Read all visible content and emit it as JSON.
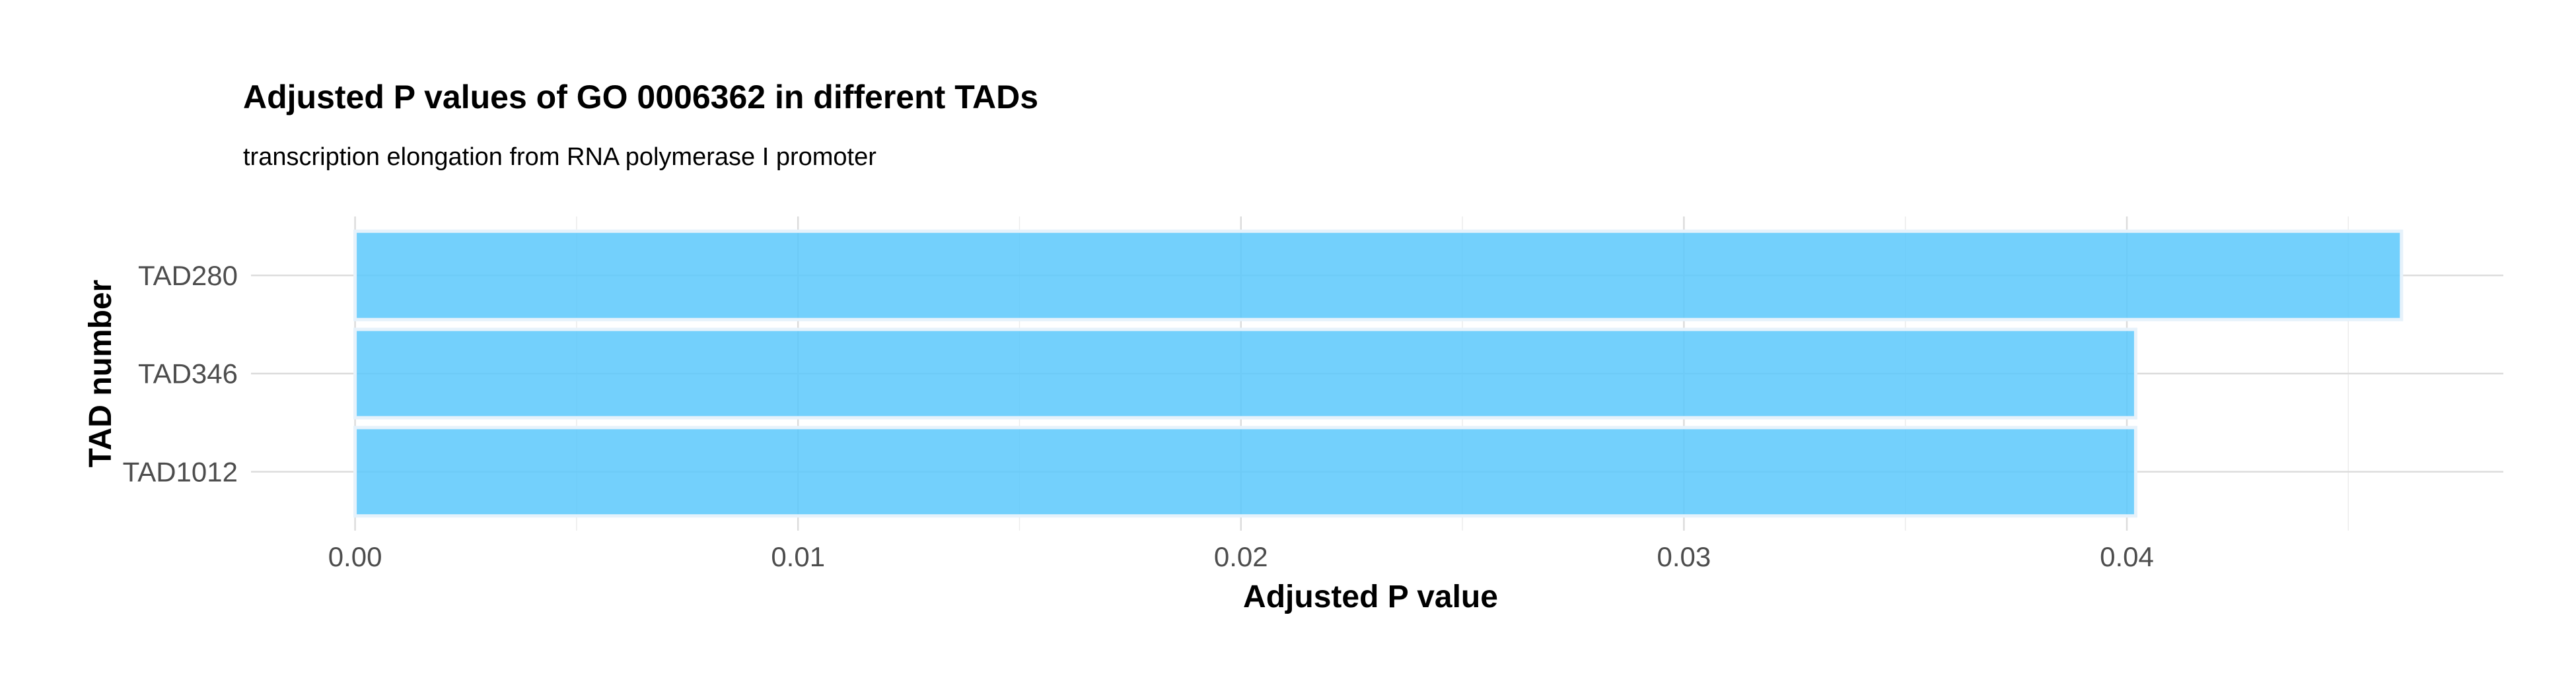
{
  "chart_data": {
    "type": "bar",
    "orientation": "horizontal",
    "title": "Adjusted P values of GO 0006362 in different TADs",
    "subtitle": "transcription elongation from RNA polymerase I promoter",
    "xlabel": "Adjusted P value",
    "ylabel": "TAD number",
    "categories": [
      "TAD280",
      "TAD346",
      "TAD1012"
    ],
    "values": [
      0.0462,
      0.0402,
      0.0402
    ],
    "xlim": [
      -0.00235,
      0.0485
    ],
    "x_ticks": [
      0.0,
      0.01,
      0.02,
      0.03,
      0.04
    ],
    "x_tick_labels": [
      "0.00",
      "0.01",
      "0.02",
      "0.03",
      "0.04"
    ],
    "x_minor_ticks": [
      0.005,
      0.015,
      0.025,
      0.035,
      0.045
    ],
    "grid": true,
    "legend": "none",
    "colors": {
      "bar_fill": "#5bc8fb",
      "bar_stroke": "#e6f2fb",
      "grid_major": "#dcdcdc",
      "grid_minor": "#ececec",
      "background": "#ffffff"
    }
  }
}
